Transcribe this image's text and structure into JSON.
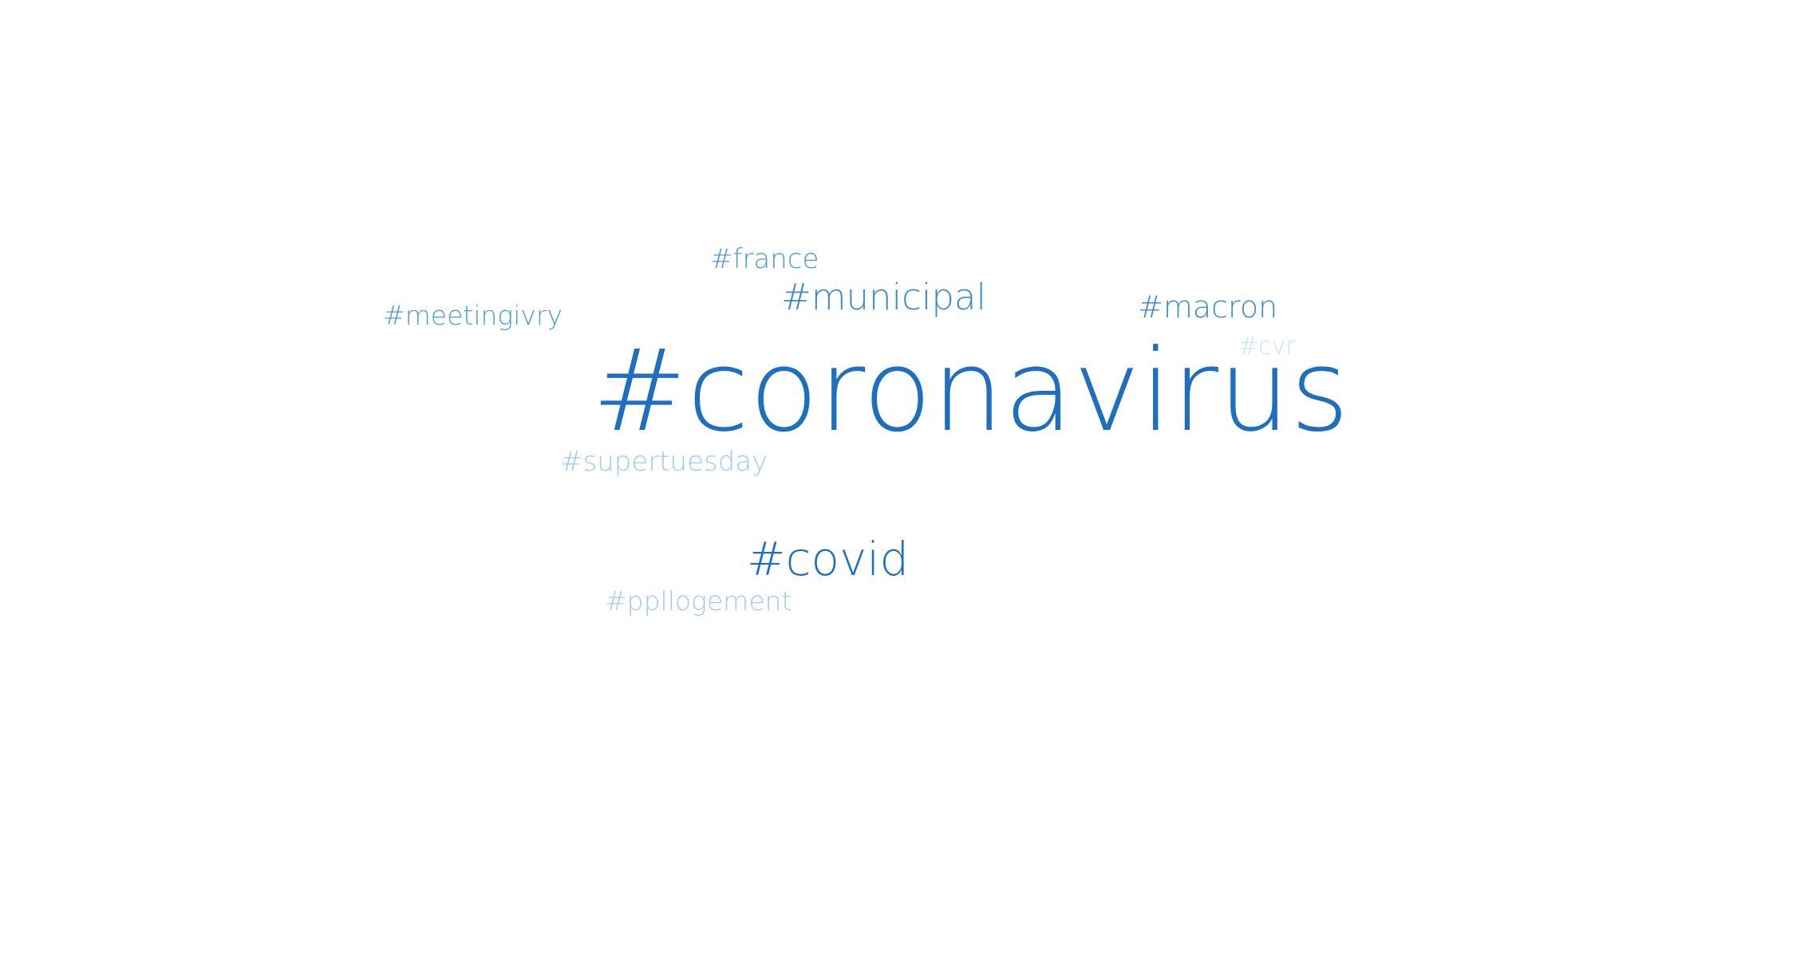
{
  "word_cloud": {
    "tags": [
      {
        "id": "coronavirus",
        "text": "#coronavirus",
        "color": "#1f6fbf"
      },
      {
        "id": "covid",
        "text": "#covid",
        "color": "#1f6fbf"
      },
      {
        "id": "municipal",
        "text": "#municipal",
        "color": "#3d8ccc"
      },
      {
        "id": "macron",
        "text": "#macron",
        "color": "#3d8ccc"
      },
      {
        "id": "meetingivry",
        "text": "#meetingivry",
        "color": "#4f9bd6"
      },
      {
        "id": "france",
        "text": "#france",
        "color": "#4f9bd6"
      },
      {
        "id": "supertuesday",
        "text": "#supertuesday",
        "color": "#9ecbee"
      },
      {
        "id": "ppllogement",
        "text": "#ppllogement",
        "color": "#9ecbee"
      },
      {
        "id": "cvr",
        "text": "#cvr",
        "color": "#c8e2f6"
      }
    ]
  }
}
